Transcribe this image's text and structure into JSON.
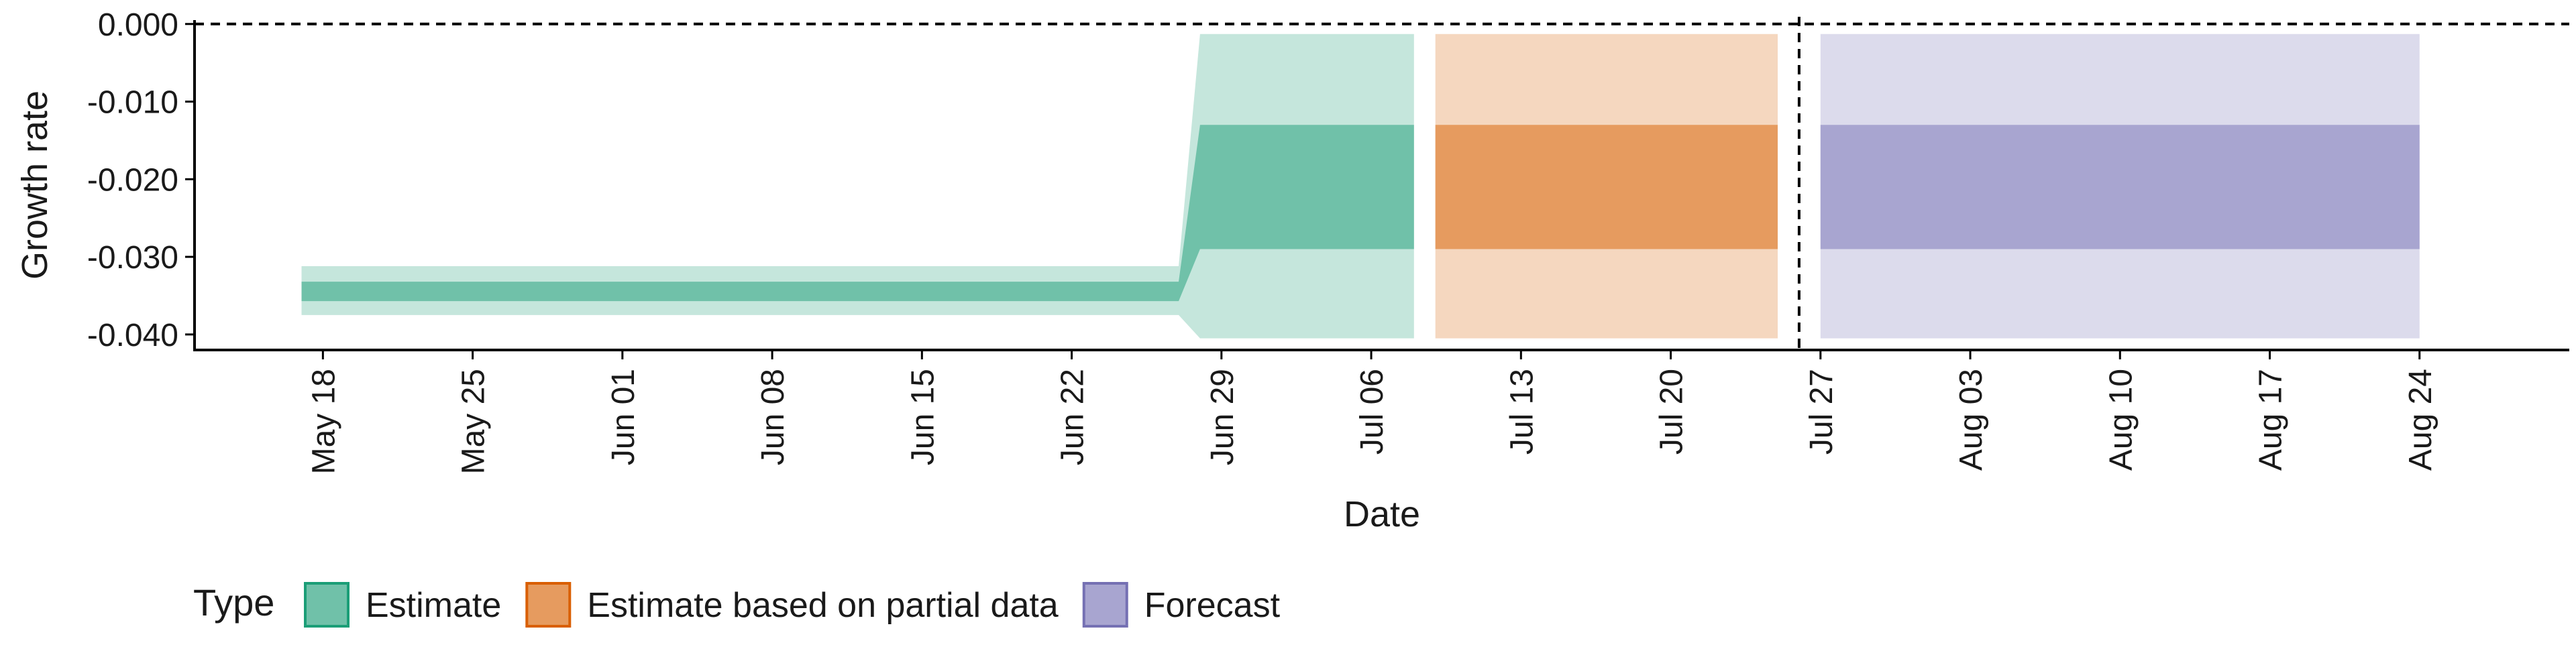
{
  "chart_data": {
    "type": "area",
    "xlabel": "Date",
    "ylabel": "Growth rate",
    "y_ticks": [
      "0.000",
      "-0.010",
      "-0.020",
      "-0.030",
      "-0.040"
    ],
    "y_tick_values": [
      0.0,
      -0.01,
      -0.02,
      -0.03,
      -0.04
    ],
    "ylim": [
      -0.042,
      0.0005
    ],
    "x_ticks": [
      "May 18",
      "May 25",
      "Jun 01",
      "Jun 08",
      "Jun 15",
      "Jun 22",
      "Jun 29",
      "Jul 06",
      "Jul 13",
      "Jul 20",
      "Jul 27",
      "Aug 03",
      "Aug 10",
      "Aug 17",
      "Aug 24"
    ],
    "x_tick_dates": [
      "2020-05-18",
      "2020-05-25",
      "2020-06-01",
      "2020-06-08",
      "2020-06-15",
      "2020-06-22",
      "2020-06-29",
      "2020-07-06",
      "2020-07-13",
      "2020-07-20",
      "2020-07-27",
      "2020-08-03",
      "2020-08-10",
      "2020-08-17",
      "2020-08-24"
    ],
    "xlim": [
      "2020-05-12",
      "2020-08-31"
    ],
    "hline": {
      "y": 0.0,
      "style": "dashed"
    },
    "vline": {
      "x": "2020-07-26",
      "style": "dashed"
    },
    "legend": {
      "title": "Type",
      "position": "bottom-left",
      "items": [
        {
          "label": "Estimate",
          "fill": "#70c1a9",
          "stroke": "#1b9e77"
        },
        {
          "label": "Estimate based on partial data",
          "fill": "#e69b5f",
          "stroke": "#d95f02"
        },
        {
          "label": "Forecast",
          "fill": "#a8a5d0",
          "stroke": "#7570b3"
        }
      ]
    },
    "series": [
      {
        "name": "Estimate",
        "outer_color": "#c5e6dc",
        "inner_color": "#70c1a9",
        "points": [
          {
            "x": "2020-05-17",
            "outer": [
              -0.0375,
              -0.0312
            ],
            "inner": [
              -0.0357,
              -0.0332
            ]
          },
          {
            "x": "2020-06-27",
            "outer": [
              -0.0375,
              -0.0312
            ],
            "inner": [
              -0.0357,
              -0.0332
            ]
          },
          {
            "x": "2020-06-28",
            "outer": [
              -0.0405,
              -0.0013
            ],
            "inner": [
              -0.029,
              -0.013
            ]
          },
          {
            "x": "2020-07-08",
            "outer": [
              -0.0405,
              -0.0013
            ],
            "inner": [
              -0.029,
              -0.013
            ]
          }
        ]
      },
      {
        "name": "Estimate based on partial data",
        "outer_color": "#f5d7bf",
        "inner_color": "#e69b5f",
        "points": [
          {
            "x": "2020-07-09",
            "outer": [
              -0.0405,
              -0.0013
            ],
            "inner": [
              -0.029,
              -0.013
            ]
          },
          {
            "x": "2020-07-25",
            "outer": [
              -0.0405,
              -0.0013
            ],
            "inner": [
              -0.029,
              -0.013
            ]
          }
        ]
      },
      {
        "name": "Forecast",
        "outer_color": "#dcdbec",
        "inner_color": "#a8a5d0",
        "points": [
          {
            "x": "2020-07-27",
            "outer": [
              -0.0405,
              -0.0013
            ],
            "inner": [
              -0.029,
              -0.013
            ]
          },
          {
            "x": "2020-08-24",
            "outer": [
              -0.0405,
              -0.0013
            ],
            "inner": [
              -0.029,
              -0.013
            ]
          }
        ]
      }
    ]
  }
}
